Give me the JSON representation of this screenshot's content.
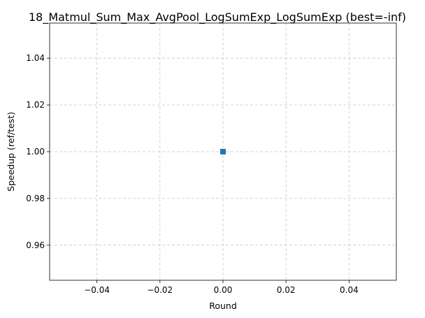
{
  "chart_data": {
    "type": "line",
    "title": "18_Matmul_Sum_Max_AvgPool_LogSumExp_LogSumExp (best=-inf)",
    "xlabel": "Round",
    "ylabel": "Speedup (ref/test)",
    "xlim": [
      -0.055,
      0.055
    ],
    "ylim": [
      0.945,
      1.055
    ],
    "xticks": [
      -0.04,
      -0.02,
      0.0,
      0.02,
      0.04
    ],
    "xtick_labels": [
      "−0.04",
      "−0.02",
      "0.00",
      "0.02",
      "0.04"
    ],
    "yticks": [
      0.96,
      0.98,
      1.0,
      1.02,
      1.04
    ],
    "ytick_labels": [
      "0.96",
      "0.98",
      "1.00",
      "1.02",
      "1.04"
    ],
    "grid": true,
    "series": [
      {
        "x": [
          0
        ],
        "y": [
          1.0
        ],
        "marker": "square",
        "color": "#1f77b4"
      }
    ]
  }
}
